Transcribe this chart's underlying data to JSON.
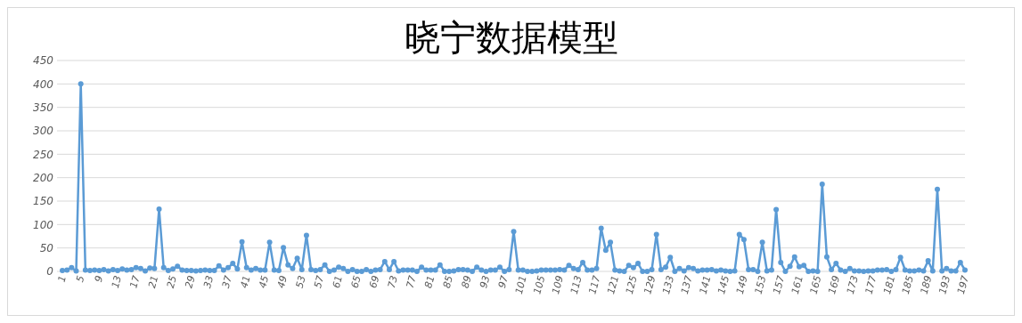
{
  "chart_data": {
    "type": "line",
    "title": "晓宁数据模型",
    "categories": [
      "1",
      null,
      null,
      null,
      "5",
      null,
      null,
      null,
      "9",
      null,
      null,
      null,
      "13",
      null,
      null,
      null,
      "17",
      null,
      null,
      null,
      "21",
      null,
      null,
      null,
      "25",
      null,
      null,
      null,
      "29",
      null,
      null,
      null,
      "33",
      null,
      null,
      null,
      "37",
      null,
      null,
      null,
      "41",
      null,
      null,
      null,
      "45",
      null,
      null,
      null,
      "49",
      null,
      null,
      null,
      "53",
      null,
      null,
      null,
      "57",
      null,
      null,
      null,
      "61",
      null,
      null,
      null,
      "65",
      null,
      null,
      null,
      "69",
      null,
      null,
      null,
      "73",
      null,
      null,
      null,
      "77",
      null,
      null,
      null,
      "81",
      null,
      null,
      null,
      "85",
      null,
      null,
      null,
      "89",
      null,
      null,
      null,
      "93",
      null,
      null,
      null,
      "97",
      null,
      null,
      null,
      "101",
      null,
      null,
      null,
      "105",
      null,
      null,
      null,
      "109",
      null,
      null,
      null,
      "113",
      null,
      null,
      null,
      "117",
      null,
      null,
      null,
      "121",
      null,
      null,
      null,
      "125",
      null,
      null,
      null,
      "129",
      null,
      null,
      null,
      "133",
      null,
      null,
      null,
      "137",
      null,
      null,
      null,
      "141",
      null,
      null,
      null,
      "145",
      null,
      null,
      null,
      "149",
      null,
      null,
      null,
      "153",
      null,
      null,
      null,
      "157",
      null,
      null,
      null,
      "161",
      null,
      null,
      null,
      "165",
      null,
      null,
      null,
      "169",
      null,
      null,
      null,
      "173",
      null,
      null,
      null,
      "177",
      null,
      null,
      null,
      "181",
      null,
      null,
      null,
      "185",
      null,
      null,
      null,
      "189",
      null,
      null,
      null,
      "193",
      null,
      null,
      null,
      "197"
    ],
    "series": [
      {
        "color": "#5b9bd5",
        "values": [
          2,
          3,
          8,
          1,
          400,
          3,
          2,
          3,
          2,
          4,
          1,
          4,
          2,
          5,
          3,
          4,
          8,
          6,
          1,
          7,
          6,
          133,
          8,
          2,
          5,
          11,
          3,
          2,
          2,
          1,
          2,
          3,
          2,
          2,
          12,
          3,
          8,
          17,
          5,
          63,
          8,
          3,
          6,
          3,
          3,
          62,
          3,
          2,
          51,
          14,
          6,
          28,
          4,
          77,
          4,
          2,
          4,
          14,
          0,
          3,
          9,
          6,
          0,
          4,
          0,
          0,
          4,
          0,
          3,
          4,
          21,
          4,
          21,
          1,
          3,
          3,
          3,
          0,
          9,
          3,
          3,
          3,
          14,
          0,
          0,
          1,
          4,
          4,
          3,
          0,
          9,
          3,
          0,
          3,
          3,
          9,
          0,
          4,
          85,
          3,
          3,
          0,
          0,
          1,
          3,
          3,
          3,
          3,
          4,
          3,
          13,
          6,
          4,
          19,
          3,
          3,
          6,
          92,
          45,
          62,
          3,
          1,
          0,
          13,
          8,
          17,
          0,
          0,
          4,
          79,
          4,
          9,
          30,
          0,
          6,
          1,
          8,
          6,
          1,
          3,
          3,
          4,
          1,
          3,
          1,
          0,
          1,
          79,
          68,
          4,
          4,
          0,
          62,
          1,
          3,
          132,
          19,
          0,
          11,
          31,
          10,
          13,
          0,
          1,
          0,
          186,
          31,
          4,
          17,
          3,
          0,
          6,
          1,
          1,
          0,
          1,
          1,
          3,
          3,
          4,
          0,
          4,
          30,
          3,
          1,
          1,
          3,
          1,
          23,
          1,
          175,
          1,
          6,
          1,
          1,
          19,
          3
        ]
      }
    ],
    "ylim": [
      0,
      450
    ],
    "yticks": [
      0,
      50,
      100,
      150,
      200,
      250,
      300,
      350,
      400,
      450
    ],
    "grid": "y",
    "marker": "circle",
    "line_style": "solid"
  }
}
